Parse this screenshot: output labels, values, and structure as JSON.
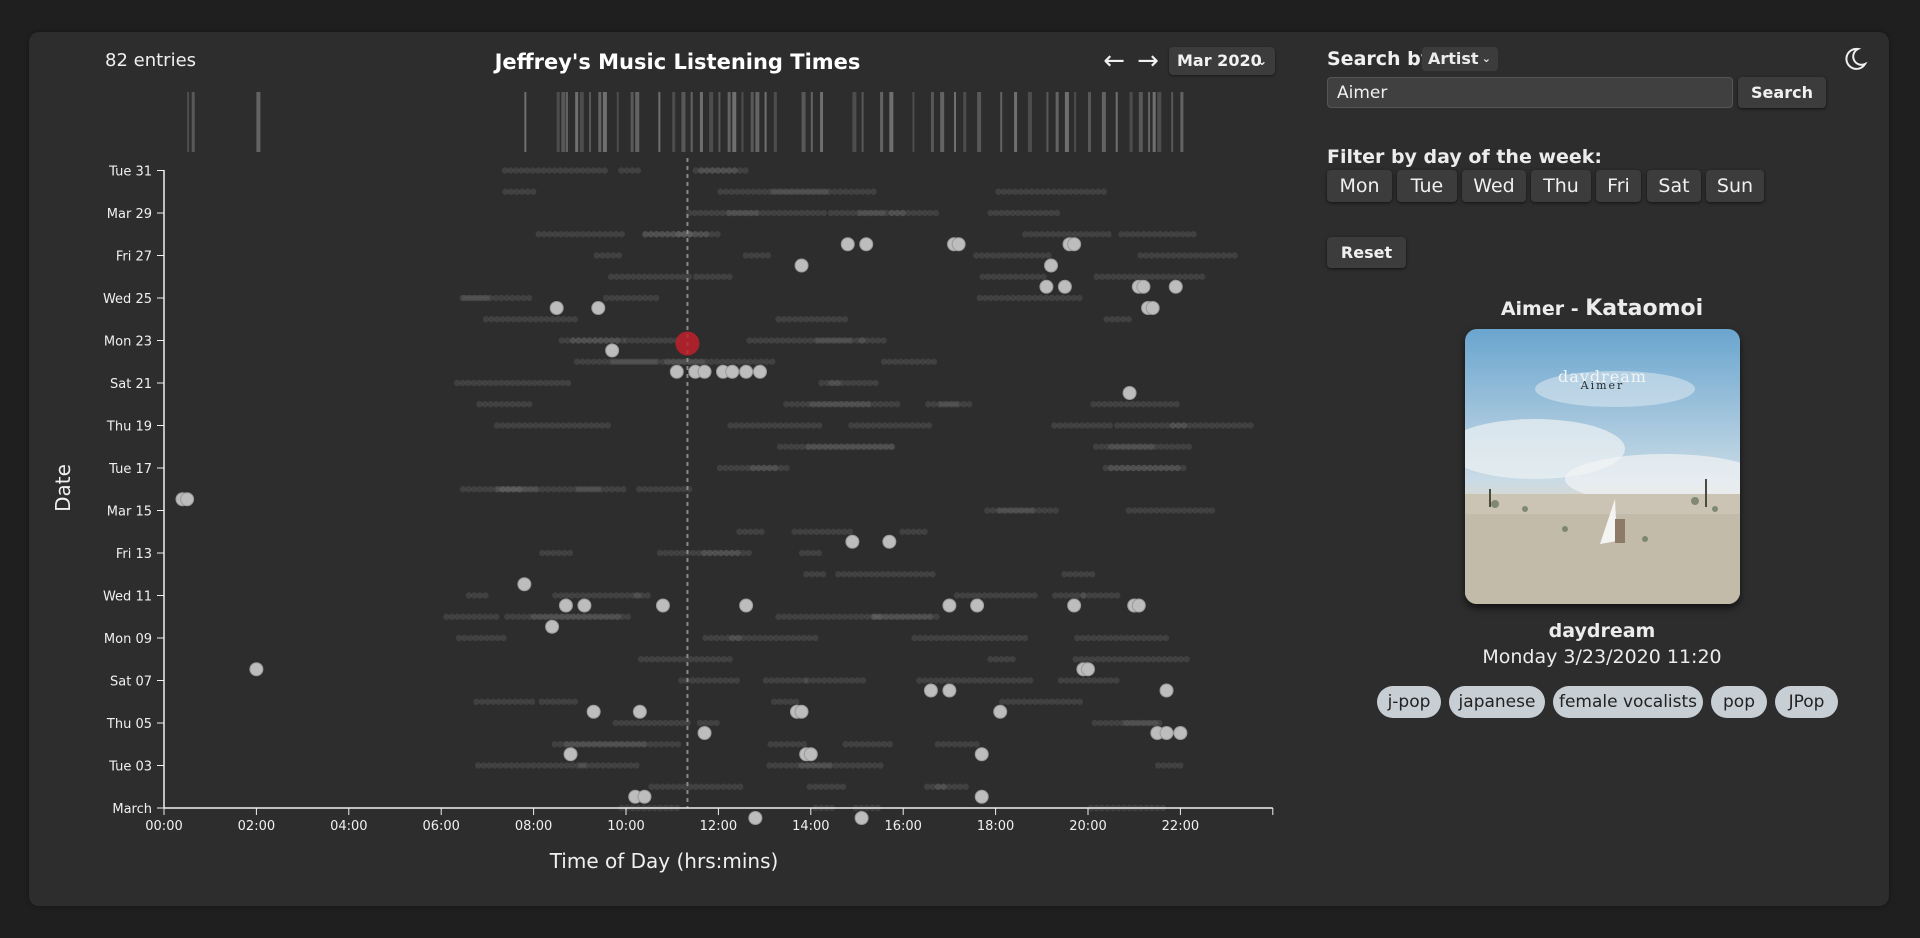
{
  "header": {
    "entries": "82 entries",
    "title": "Jeffrey's Music Listening Times",
    "prev_icon": "arrow-left-icon",
    "next_icon": "arrow-right-icon",
    "month_selected": "Mar 2020"
  },
  "chart": {
    "y_axis_title": "Date",
    "x_axis_title": "Time of Day (hrs:mins)"
  },
  "chart_data": {
    "type": "scatter",
    "x_ticks": [
      "00:00",
      "02:00",
      "04:00",
      "06:00",
      "08:00",
      "10:00",
      "12:00",
      "14:00",
      "16:00",
      "18:00",
      "20:00",
      "22:00"
    ],
    "y_ticks": [
      "Tue 31",
      "Mar 29",
      "Fri 27",
      "Wed 25",
      "Mon 23",
      "Sat 21",
      "Thu 19",
      "Tue 17",
      "Mar 15",
      "Fri 13",
      "Wed 11",
      "Mon 09",
      "Sat 07",
      "Thu 05",
      "Tue 03",
      "March"
    ],
    "xlabel": "Time of Day (hrs:mins)",
    "ylabel": "Date",
    "xlim": [
      0,
      24
    ],
    "current_time_marker": 11.33,
    "highlight_point": {
      "day": 23,
      "time": 11.33
    },
    "points": [
      {
        "day": 1,
        "time": 12.8
      },
      {
        "day": 1,
        "time": 15.1
      },
      {
        "day": 2,
        "time": 10.2
      },
      {
        "day": 2,
        "time": 10.4
      },
      {
        "day": 2,
        "time": 17.7
      },
      {
        "day": 4,
        "time": 8.8
      },
      {
        "day": 4,
        "time": 13.9
      },
      {
        "day": 4,
        "time": 14.0
      },
      {
        "day": 4,
        "time": 17.7
      },
      {
        "day": 5,
        "time": 11.7
      },
      {
        "day": 5,
        "time": 21.5
      },
      {
        "day": 5,
        "time": 21.7
      },
      {
        "day": 5,
        "time": 22.0
      },
      {
        "day": 6,
        "time": 9.3
      },
      {
        "day": 6,
        "time": 10.3
      },
      {
        "day": 6,
        "time": 13.7
      },
      {
        "day": 6,
        "time": 13.8
      },
      {
        "day": 6,
        "time": 18.1
      },
      {
        "day": 7,
        "time": 16.6
      },
      {
        "day": 7,
        "time": 17.0
      },
      {
        "day": 7,
        "time": 21.7
      },
      {
        "day": 8,
        "time": 2.0
      },
      {
        "day": 8,
        "time": 19.9
      },
      {
        "day": 8,
        "time": 20.0
      },
      {
        "day": 10,
        "time": 8.4
      },
      {
        "day": 11,
        "time": 8.7
      },
      {
        "day": 11,
        "time": 9.1
      },
      {
        "day": 11,
        "time": 10.8
      },
      {
        "day": 11,
        "time": 12.6
      },
      {
        "day": 11,
        "time": 17.0
      },
      {
        "day": 11,
        "time": 17.6
      },
      {
        "day": 11,
        "time": 19.7
      },
      {
        "day": 11,
        "time": 21.0
      },
      {
        "day": 11,
        "time": 21.1
      },
      {
        "day": 12,
        "time": 7.8
      },
      {
        "day": 14,
        "time": 14.9
      },
      {
        "day": 14,
        "time": 15.7
      },
      {
        "day": 16,
        "time": 0.4
      },
      {
        "day": 16,
        "time": 0.5
      },
      {
        "day": 22,
        "time": 11.1
      },
      {
        "day": 22,
        "time": 11.5
      },
      {
        "day": 22,
        "time": 11.7
      },
      {
        "day": 22,
        "time": 12.1
      },
      {
        "day": 22,
        "time": 12.3
      },
      {
        "day": 22,
        "time": 12.6
      },
      {
        "day": 22,
        "time": 12.9
      },
      {
        "day": 21,
        "time": 20.9
      },
      {
        "day": 23,
        "time": 9.7
      },
      {
        "day": 25,
        "time": 8.5
      },
      {
        "day": 25,
        "time": 9.4
      },
      {
        "day": 25,
        "time": 21.3
      },
      {
        "day": 25,
        "time": 21.4
      },
      {
        "day": 26,
        "time": 19.1
      },
      {
        "day": 26,
        "time": 19.5
      },
      {
        "day": 26,
        "time": 21.1
      },
      {
        "day": 26,
        "time": 21.2
      },
      {
        "day": 26,
        "time": 21.9
      },
      {
        "day": 27,
        "time": 13.8
      },
      {
        "day": 27,
        "time": 19.2
      },
      {
        "day": 28,
        "time": 14.8
      },
      {
        "day": 28,
        "time": 15.2
      },
      {
        "day": 28,
        "time": 17.1
      },
      {
        "day": 28,
        "time": 17.2
      },
      {
        "day": 28,
        "time": 19.6
      },
      {
        "day": 28,
        "time": 19.7
      }
    ],
    "top_strip_hours": [
      0.5,
      0.6,
      2.0,
      7.8,
      8.5,
      8.6,
      8.7,
      8.9,
      9.0,
      9.2,
      9.4,
      9.5,
      9.8,
      10.1,
      10.2,
      10.7,
      11.0,
      11.2,
      11.4,
      11.6,
      11.8,
      12.0,
      12.2,
      12.3,
      12.5,
      12.7,
      12.8,
      13.0,
      13.2,
      13.8,
      14.0,
      14.2,
      14.9,
      15.1,
      15.5,
      15.7,
      16.2,
      16.6,
      16.8,
      17.1,
      17.3,
      17.6,
      18.1,
      18.4,
      18.7,
      19.1,
      19.3,
      19.5,
      19.7,
      20.0,
      20.3,
      20.6,
      20.9,
      21.1,
      21.3,
      21.4,
      21.5,
      21.8,
      22.0
    ]
  },
  "sidebar": {
    "search_label": "Search by",
    "search_by_value": "Artist",
    "search_input_value": "Aimer",
    "search_button": "Search",
    "filter_label": "Filter by day of the week:",
    "days": [
      "Mon",
      "Tue",
      "Wed",
      "Thu",
      "Fri",
      "Sat",
      "Sun"
    ],
    "reset_button": "Reset",
    "theme_icon": "moon-icon"
  },
  "now_playing": {
    "artist": "Aimer",
    "separator": " - ",
    "song": "Kataomoi",
    "cover_text_top": "daydream",
    "cover_text_bottom": "Aimer",
    "album": "daydream",
    "played_at": "Monday 3/23/2020 11:20",
    "tags": [
      "j-pop",
      "japanese",
      "female vocalists",
      "pop",
      "JPop"
    ]
  },
  "colors": {
    "background": "#1f1f1f",
    "card": "#2d2d2d",
    "point": "#bdbdbd",
    "highlight": "#c0202a",
    "tag_bg": "#c7ced4"
  }
}
